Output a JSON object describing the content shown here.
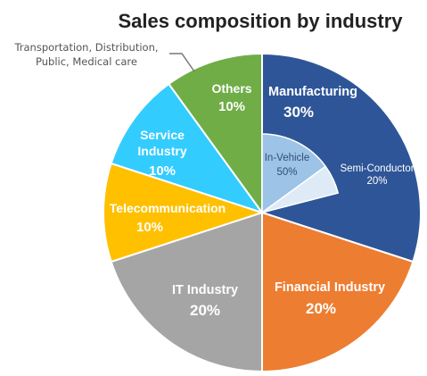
{
  "chart_data": {
    "type": "pie",
    "title": "Sales composition by industry",
    "slices": [
      {
        "label": "Manufacturing",
        "value_label": "30%",
        "value": 30,
        "color": "#2e5597"
      },
      {
        "label": "Financial Industry",
        "value_label": "20%",
        "value": 20,
        "color": "#ed7d31"
      },
      {
        "label": "IT Industry",
        "value_label": "20%",
        "value": 20,
        "color": "#a5a5a5"
      },
      {
        "label": "Telecommunication",
        "value_label": "10%",
        "value": 10,
        "color": "#ffc000"
      },
      {
        "label": "Service Industry",
        "value_label": "10%",
        "value": 10,
        "color": "#33ccff"
      },
      {
        "label": "Others",
        "value_label": "10%",
        "value": 10,
        "color": "#70ad47"
      }
    ],
    "sub_breakdown": {
      "parent": "Manufacturing",
      "items": [
        {
          "label": "In-Vehicle",
          "value_label": "50%",
          "value": 50,
          "color": "#9dc3e6"
        },
        {
          "label": "Semi-Conductor",
          "value_label": "20%",
          "value": 20,
          "color": "#deebf7"
        }
      ]
    },
    "annotation": {
      "lines": [
        "Transportation, Distribution,",
        "Public, Medical care"
      ],
      "points_to": "Others"
    }
  }
}
